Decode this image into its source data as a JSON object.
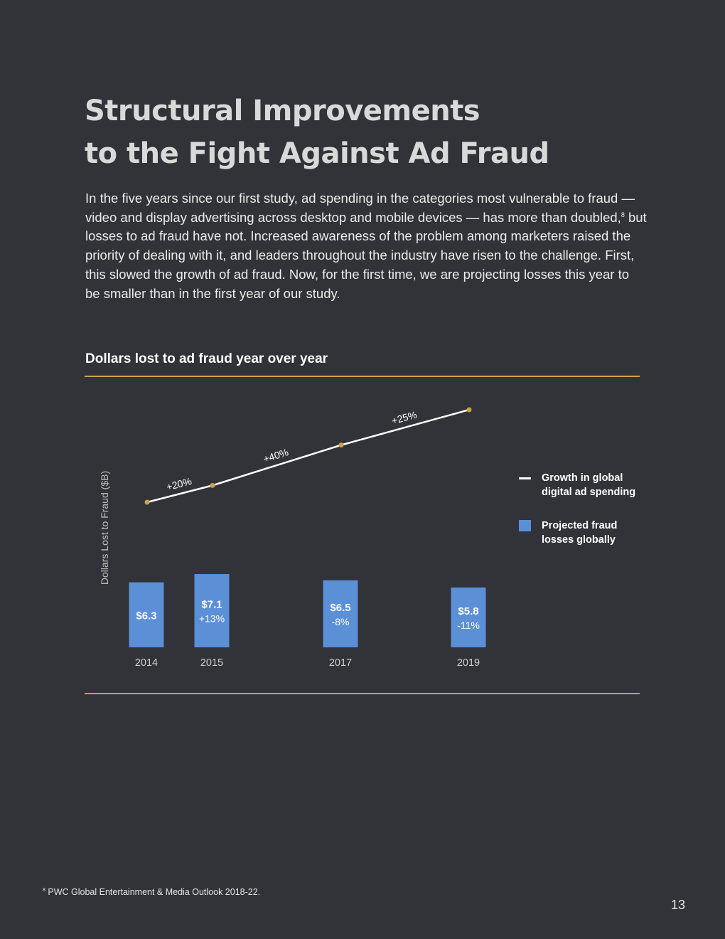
{
  "heading": {
    "line1": "Structural Improvements",
    "line2": "to the Fight Against Ad Fraud"
  },
  "body": {
    "before_ref": "In the five years since our first study, ad spending in the categories most vulnerable to fraud — video and display advertising across desktop and mobile devices — has more than doubled,",
    "ref": "8",
    "after_ref": " but losses to ad fraud have not. Increased awareness of the problem among marketers raised the priority of dealing with it, and leaders throughout the industry have risen to the challenge. First, this slowed the growth of ad fraud. Now, for the first time, we are projecting losses this year to be smaller than in the first year of our study."
  },
  "chart_data": {
    "type": "bar",
    "title": "Dollars lost to ad fraud year over year",
    "ylabel": "Dollars Lost to Fraud ($B)",
    "categories": [
      "2014",
      "2015",
      "2017",
      "2019"
    ],
    "series": [
      {
        "name": "Projected fraud losses globally",
        "type": "bar",
        "values": [
          6.3,
          7.1,
          6.5,
          5.8
        ],
        "value_labels": [
          "$6.3",
          "$7.1",
          "$6.5",
          "$5.8"
        ],
        "change_labels": [
          "",
          "+13%",
          "-8%",
          "-11%"
        ],
        "color": "#5b8fd6"
      },
      {
        "name": "Growth in global digital ad spending",
        "type": "line",
        "segment_labels": [
          "+20%",
          "+40%",
          "+25%"
        ],
        "color": "#ffffff",
        "marker_color": "#c9a24a"
      }
    ],
    "legend": "right",
    "grid": false
  },
  "footnote": {
    "ref": "8",
    "text": " PWC Global Entertainment & Media Outlook 2018-22."
  },
  "page_number": "13",
  "colors": {
    "background": "#313338",
    "accent_rule": "#c9a24a",
    "bar": "#5b8fd6",
    "heading": "#d9d9d9"
  }
}
